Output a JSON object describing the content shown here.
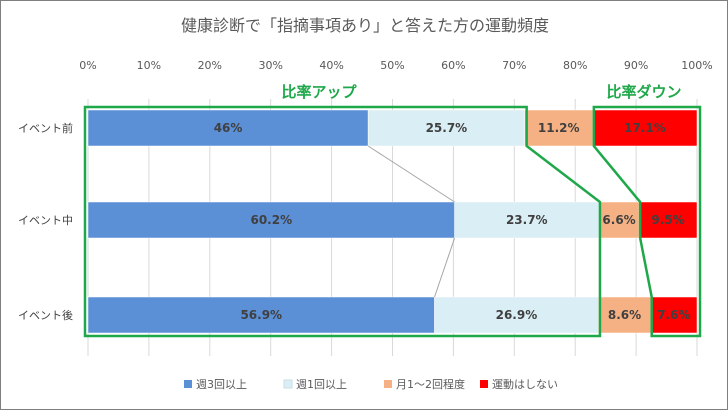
{
  "chart_data": {
    "type": "bar",
    "orientation": "horizontal",
    "stacked": true,
    "percent": true,
    "title": "健康診断で「指摘事項あり」と答えた方の運動頻度",
    "categories": [
      "イベント前",
      "イベント中",
      "イベント後"
    ],
    "xlim": [
      0,
      100
    ],
    "x_ticks": [
      "0%",
      "10%",
      "20%",
      "30%",
      "40%",
      "50%",
      "60%",
      "70%",
      "80%",
      "90%",
      "100%"
    ],
    "grid": true,
    "legend_position": "bottom",
    "series": [
      {
        "name": "週3回以上",
        "color": "#5b8fd6",
        "values": [
          46,
          60.2,
          56.9
        ],
        "labels": [
          "46%",
          "60.2%",
          "56.9%"
        ]
      },
      {
        "name": "週1回以上",
        "color": "#daeef5",
        "values": [
          25.7,
          23.7,
          26.9
        ],
        "labels": [
          "25.7%",
          "23.7%",
          "26.9%"
        ]
      },
      {
        "name": "月1～2回程度",
        "color": "#f5b183",
        "values": [
          11.2,
          6.6,
          8.6
        ],
        "labels": [
          "11.2%",
          "6.6%",
          "8.6%"
        ]
      },
      {
        "name": "運動はしない",
        "color": "#ff0000",
        "values": [
          17.1,
          9.5,
          7.6
        ],
        "labels": [
          "17.1%",
          "9.5%",
          "7.6%"
        ]
      }
    ],
    "annotations": [
      {
        "text": "比率アップ",
        "color": "#1fa84a"
      },
      {
        "text": "比率ダウン",
        "color": "#1fa84a"
      }
    ]
  }
}
